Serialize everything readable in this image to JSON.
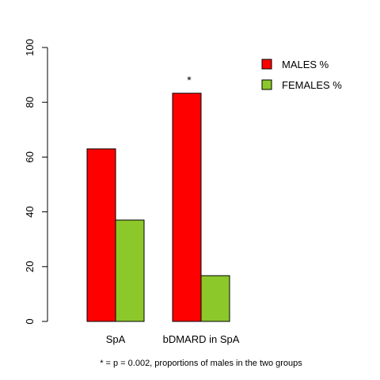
{
  "chart_data": {
    "type": "bar",
    "categories": [
      "SpA",
      "bDMARD in SpA"
    ],
    "series": [
      {
        "name": "MALES %",
        "values": [
          63,
          83.3
        ],
        "color": "#ff0000"
      },
      {
        "name": "FEMALES %",
        "values": [
          37,
          16.7
        ],
        "color": "#8cc82a"
      }
    ],
    "title": "",
    "xlabel": "",
    "ylabel": "",
    "ylim": [
      0,
      100
    ],
    "yticks": [
      "0",
      "20",
      "40",
      "60",
      "80",
      "100"
    ],
    "legend_position": "top-right",
    "grid": false,
    "significance_marker": {
      "category": "bDMARD in SpA",
      "text": "*"
    },
    "footnote": "* = p = 0.002, proportions of males in the two groups"
  }
}
